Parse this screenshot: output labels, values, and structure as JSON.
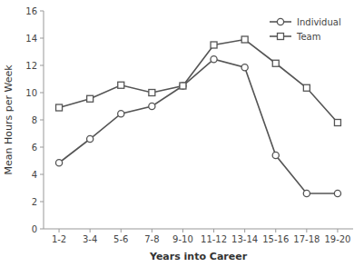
{
  "chart_data": {
    "type": "line",
    "categories": [
      "1-2",
      "3-4",
      "5-6",
      "7-8",
      "9-10",
      "11-12",
      "13-14",
      "15-16",
      "17-18",
      "19-20"
    ],
    "series": [
      {
        "name": "Individual",
        "color": "#555555",
        "marker": "circle",
        "values": [
          4.85,
          6.6,
          8.45,
          9.0,
          10.5,
          12.45,
          11.85,
          5.4,
          2.6,
          2.6
        ]
      },
      {
        "name": "Team",
        "color": "#555555",
        "marker": "square",
        "values": [
          8.9,
          9.55,
          10.55,
          10.0,
          10.5,
          13.5,
          13.9,
          12.15,
          10.35,
          7.8
        ]
      }
    ],
    "xlabel": "Years into Career",
    "ylabel": "Mean Hours per Week",
    "ylim": [
      0,
      16
    ],
    "yticks": [
      0,
      2,
      4,
      6,
      8,
      10,
      12,
      14,
      16
    ],
    "legend": "upper right",
    "grid": false
  }
}
